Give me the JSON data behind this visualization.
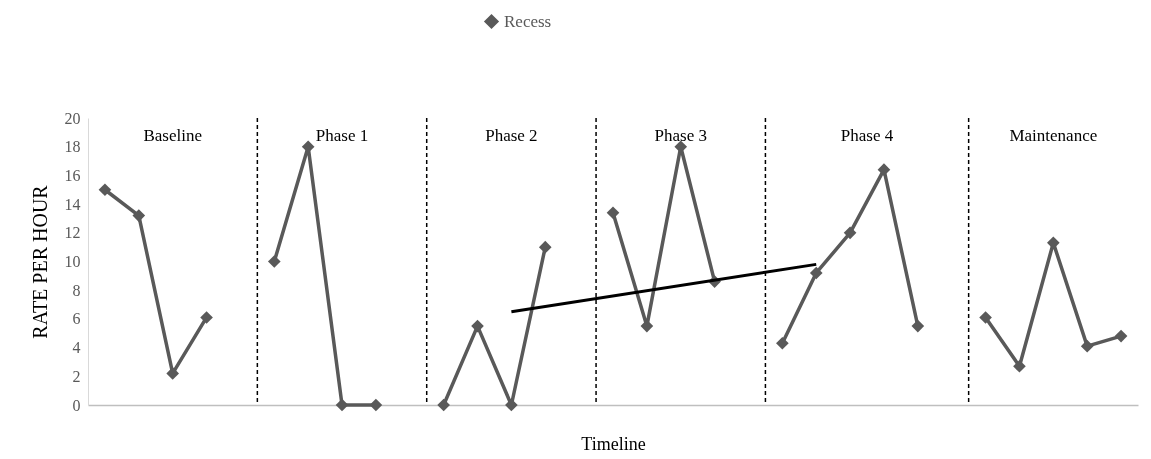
{
  "chart_data": {
    "type": "line",
    "xlabel": "Timeline",
    "ylabel": "RATE PER HOUR",
    "categories": [
      null,
      null,
      null,
      null,
      null,
      null,
      null,
      null,
      null,
      null,
      null,
      null,
      null,
      null,
      null,
      null,
      null,
      null,
      null,
      null,
      null,
      null,
      null,
      null,
      null,
      null,
      null,
      null,
      null,
      null,
      null
    ],
    "ylim": [
      0,
      20
    ],
    "yticks": [
      0,
      2,
      4,
      6,
      8,
      10,
      12,
      14,
      16,
      18,
      20
    ],
    "tick_labels": "y",
    "series": [
      {
        "name": "Recess",
        "color": "#595959",
        "values": [
          15,
          13.2,
          2.2,
          6.1,
          null,
          10,
          18,
          0,
          0,
          null,
          0,
          5.5,
          0,
          11,
          null,
          13.4,
          5.5,
          18,
          8.6,
          null,
          4.3,
          9.2,
          12,
          16.4,
          5.5,
          null,
          6.1,
          2.7,
          11.3,
          4.1,
          4.8
        ]
      },
      {
        "type": "line",
        "color": "#000000",
        "marker": "none",
        "values": [
          null,
          null,
          null,
          null,
          null,
          null,
          null,
          null,
          null,
          null,
          null,
          null,
          6.5,
          null,
          null,
          null,
          null,
          null,
          null,
          null,
          null,
          9.8,
          null,
          null,
          null,
          null,
          null,
          null,
          null,
          null,
          null
        ]
      }
    ],
    "annotations": [
      "Baseline",
      "Phase 1",
      "Phase 2",
      "Phase 3",
      "Phase 4",
      "Maintenance"
    ],
    "marker": "diamond",
    "line_style": "solid",
    "grid": false,
    "legend": "top"
  }
}
